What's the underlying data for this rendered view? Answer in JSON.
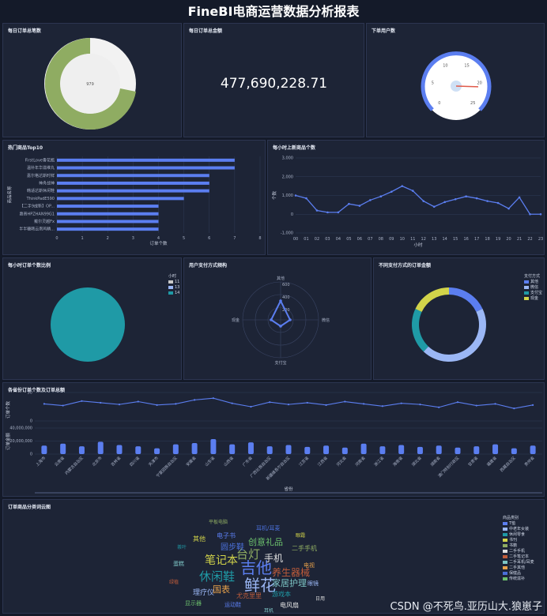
{
  "page": {
    "title": "FineBI电商运营数据分析报表",
    "watermark": "CSDN @不死鸟.亚历山大.狼崽子"
  },
  "panels": {
    "p1": "每日订单总笔数",
    "p2": "每日订单总金额",
    "p3": "下单用户数",
    "p4": "热门商品Top10",
    "p5": "每小时上新商品个数",
    "p6": "每小时订单个数比例",
    "p7": "用户支付方式频构",
    "p8": "不同支付方式的订单金额",
    "p9": "各省份订单个数及订单总额",
    "p10": "订单商品分类词云图"
  },
  "colors": {
    "blue": "#5b7ef0",
    "green": "#8fac62",
    "white": "#f2f2f2",
    "teal": "#1f9aa6",
    "yellow": "#d2d44a",
    "light": "#9bb7f5"
  },
  "chart_data": [
    {
      "type": "pie",
      "name": "daily_orders",
      "values": [
        {
          "label": "979",
          "value": 979
        }
      ],
      "center_label": "979",
      "series_colors": [
        "#8fac62",
        "#f2f2f2"
      ]
    },
    {
      "type": "table",
      "name": "daily_amount",
      "value": "477,690,228.71"
    },
    {
      "type": "gauge",
      "name": "users",
      "ticks": [
        "0",
        "5",
        "10",
        "15",
        "20",
        "25"
      ],
      "value": 21
    },
    {
      "type": "bar",
      "name": "top10",
      "orientation": "horizontal",
      "xlabel": "订单个数",
      "ylabel": "商品名称",
      "xlim": [
        0,
        8
      ],
      "xticks": [
        "0",
        "1",
        "2",
        "3",
        "4",
        "5",
        "6",
        "7",
        "8"
      ],
      "categories": [
        "FirstLove香花瓶",
        "温补年华滋维丸",
        "嘉尔格达斯时鲜",
        "神舟战神",
        "韩适达斯休闲鞋",
        "ThinkPadE590",
        "【二手9成新】OP...",
        "惠普HPZHAN99G1",
        "戴尔灵越Fx",
        "半半糖韩云南鸡精..."
      ],
      "values": [
        7,
        7,
        6,
        6,
        6,
        5,
        4,
        4,
        4,
        4
      ]
    },
    {
      "type": "line",
      "name": "hourly_new",
      "xlabel": "小时",
      "ylabel": "个数",
      "ylim": [
        -1000,
        3000
      ],
      "yticks": [
        "3,000",
        "2,000",
        "1,000",
        "0",
        "-1,000"
      ],
      "x": [
        "00",
        "01",
        "02",
        "03",
        "04",
        "05",
        "06",
        "07",
        "08",
        "09",
        "10",
        "11",
        "12",
        "13",
        "14",
        "15",
        "16",
        "17",
        "18",
        "19",
        "20",
        "21",
        "22",
        "23"
      ],
      "values": [
        1000,
        850,
        200,
        100,
        100,
        550,
        450,
        750,
        950,
        1200,
        1500,
        1250,
        700,
        400,
        650,
        800,
        950,
        850,
        700,
        600,
        300,
        900,
        0,
        0
      ]
    },
    {
      "type": "pie",
      "name": "hourly_ratio",
      "legend_title": "小时",
      "legend": [
        "11",
        "13",
        "14"
      ],
      "values": [
        0,
        0,
        1
      ],
      "colors": [
        "#c9c9c9",
        "#9bb7f5",
        "#1f9aa6"
      ]
    },
    {
      "type": "radar",
      "name": "pay_freq",
      "axes": [
        "其他",
        "微信",
        "支付宝",
        "现金"
      ],
      "ticks": [
        "600",
        "400",
        "200"
      ],
      "values": [
        300,
        150,
        100,
        150
      ]
    },
    {
      "type": "pie",
      "name": "pay_amount",
      "donut": true,
      "legend_title": "支付方式",
      "legend": [
        "其他",
        "微信",
        "支付宝",
        "现金"
      ],
      "values": [
        0.18,
        0.44,
        0.2,
        0.18
      ],
      "colors": [
        "#5b7ef0",
        "#9bb7f5",
        "#1f9aa6",
        "#d2d44a"
      ]
    },
    {
      "type": "bar",
      "name": "province",
      "ylabel_top": "订单个数",
      "ylabel_bottom": "订单金额",
      "xlabel": "省份",
      "top_yticks": [
        "50",
        "0"
      ],
      "bottom_yticks": [
        "40,000,000",
        "20,000,000",
        "0"
      ],
      "categories": [
        "上海市",
        "云南省",
        "内蒙古自治区",
        "北京市",
        "吉林省",
        "四川省",
        "天津市",
        "宁夏回族自治区",
        "安徽省",
        "山东省",
        "山西省",
        "广东省",
        "广西壮族自治区",
        "新疆维吾尔自治区",
        "江苏省",
        "江西省",
        "河北省",
        "河南省",
        "浙江省",
        "海南省",
        "湖北省",
        "湖南省",
        "澳门特别行政区",
        "甘肃省",
        "福建省",
        "西藏自治区",
        "贵州省"
      ],
      "line_values": [
        30,
        27,
        35,
        32,
        29,
        34,
        28,
        30,
        37,
        40,
        31,
        25,
        33,
        29,
        32,
        28,
        34,
        30,
        26,
        31,
        29,
        24,
        33,
        27,
        30,
        22,
        28
      ],
      "bar_values": [
        13,
        16,
        12,
        19,
        14,
        12,
        9,
        15,
        17,
        23,
        15,
        18,
        12,
        14,
        11,
        13,
        10,
        16,
        12,
        14,
        11,
        13,
        10,
        12,
        15,
        9,
        13
      ]
    },
    {
      "type": "table",
      "name": "wordcloud",
      "legend_title": "商品类别",
      "legend": [
        "T恤",
        "中老年女装",
        "休闲零食",
        "书刊",
        "书籍",
        "二手手机",
        "二手笔记本",
        "二手耳机/耳麦",
        "二手其他",
        "保健品",
        "传统滋补"
      ],
      "legend_colors": [
        "#5b7ef0",
        "#9bb7f5",
        "#1f9aa6",
        "#d2d44a",
        "#8fac62",
        "#e0e0e0",
        "#c05c3a",
        "#7dc5c5",
        "#e8a14a",
        "#4a6fd8",
        "#6cc06c"
      ],
      "words": [
        "吉他",
        "鲜花",
        "休闲鞋",
        "笔记本",
        "台灯",
        "手机",
        "养生器械",
        "家居护理",
        "国表",
        "圆步鞋",
        "创意礼品",
        "电子书",
        "理疗仪",
        "游戏本",
        "其他",
        "二手手机",
        "电风扇",
        "尤克里里",
        "蛋糕",
        "电视",
        "耳机/耳麦",
        "显示器",
        "运动鞋",
        "眼镜",
        "茶叶",
        "眼霜",
        "平板电脑",
        "日用",
        "绿植",
        "耳机"
      ]
    }
  ]
}
